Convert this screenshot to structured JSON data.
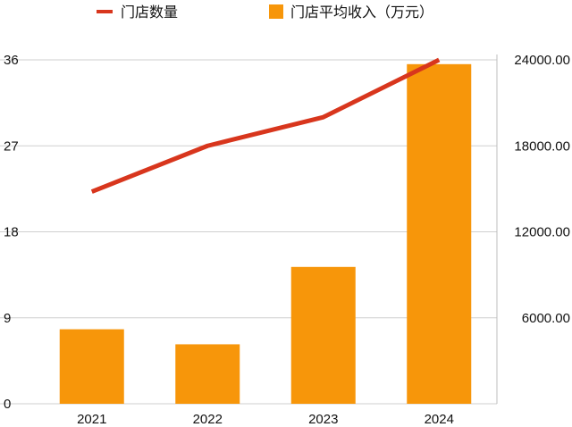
{
  "chart_data": {
    "type": "bar",
    "categories": [
      "2021",
      "2022",
      "2023",
      "2024"
    ],
    "series": [
      {
        "name": "门店平均收入（万元）",
        "kind": "bar",
        "axis": "right",
        "color": "#F7960A",
        "values": [
          5200,
          4150,
          9550,
          23700
        ]
      },
      {
        "name": "门店数量",
        "kind": "line",
        "axis": "left",
        "color": "#D8361D",
        "values": [
          22.2,
          27,
          30,
          36
        ]
      }
    ],
    "y_left": {
      "ylim": [
        0,
        36
      ],
      "ticks": [
        "0",
        "9",
        "18",
        "27",
        "36"
      ]
    },
    "y_right": {
      "ylim": [
        0,
        24000
      ],
      "ticks": [
        "6000.00",
        "12000.00",
        "18000.00",
        "24000.00"
      ]
    },
    "grid": true,
    "legend": "top"
  }
}
